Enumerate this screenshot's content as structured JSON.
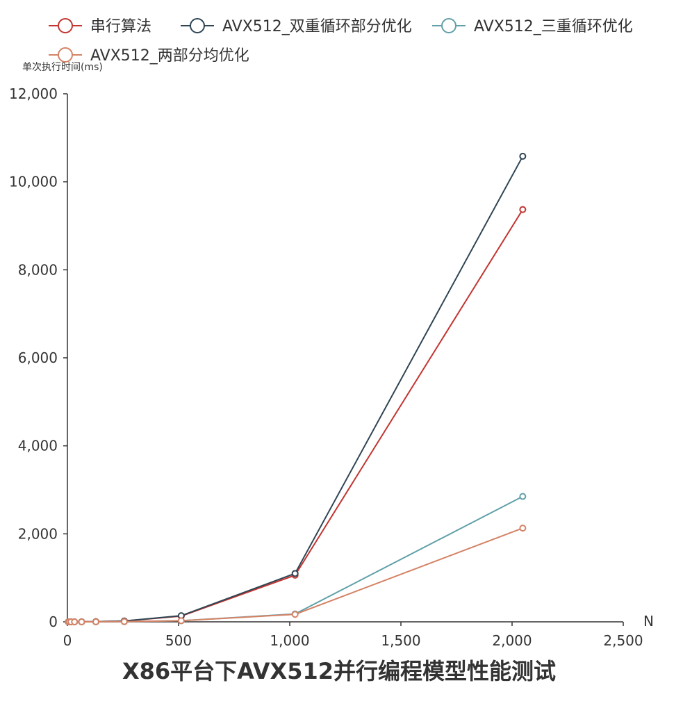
{
  "chart_data": {
    "type": "line",
    "title": "X86平台下AVX512并行编程模型性能测试",
    "xlabel": "N",
    "ylabel": "单次执行时间(ms)",
    "xlim": [
      0,
      2500
    ],
    "ylim": [
      0,
      12000
    ],
    "xticks": [
      0,
      500,
      1000,
      1500,
      2000,
      2500
    ],
    "xtick_labels": [
      "0",
      "500",
      "1,000",
      "1,500",
      "2,000",
      "2,500"
    ],
    "yticks": [
      0,
      2000,
      4000,
      6000,
      8000,
      10000,
      12000
    ],
    "ytick_labels": [
      "0",
      "2,000",
      "4,000",
      "6,000",
      "8,000",
      "10,000",
      "12,000"
    ],
    "grid": false,
    "legend_position": "top",
    "x": [
      4,
      8,
      16,
      32,
      64,
      128,
      256,
      512,
      1024,
      2048
    ],
    "series": [
      {
        "name": "串行算法",
        "color": "#c23531",
        "values": [
          0,
          0,
          0,
          0,
          1,
          5,
          20,
          130,
          1060,
          9370
        ]
      },
      {
        "name": "AVX512_双重循环部分优化",
        "color": "#2f4554",
        "values": [
          0,
          0,
          0,
          0,
          1,
          5,
          20,
          140,
          1100,
          10580
        ]
      },
      {
        "name": "AVX512_三重循环优化",
        "color": "#61a0a8",
        "values": [
          0,
          0,
          0,
          0,
          0,
          1,
          5,
          25,
          180,
          2850
        ]
      },
      {
        "name": "AVX512_两部分均优化",
        "color": "#d48265",
        "values": [
          0,
          0,
          0,
          0,
          0,
          1,
          5,
          25,
          170,
          2130
        ]
      }
    ]
  }
}
